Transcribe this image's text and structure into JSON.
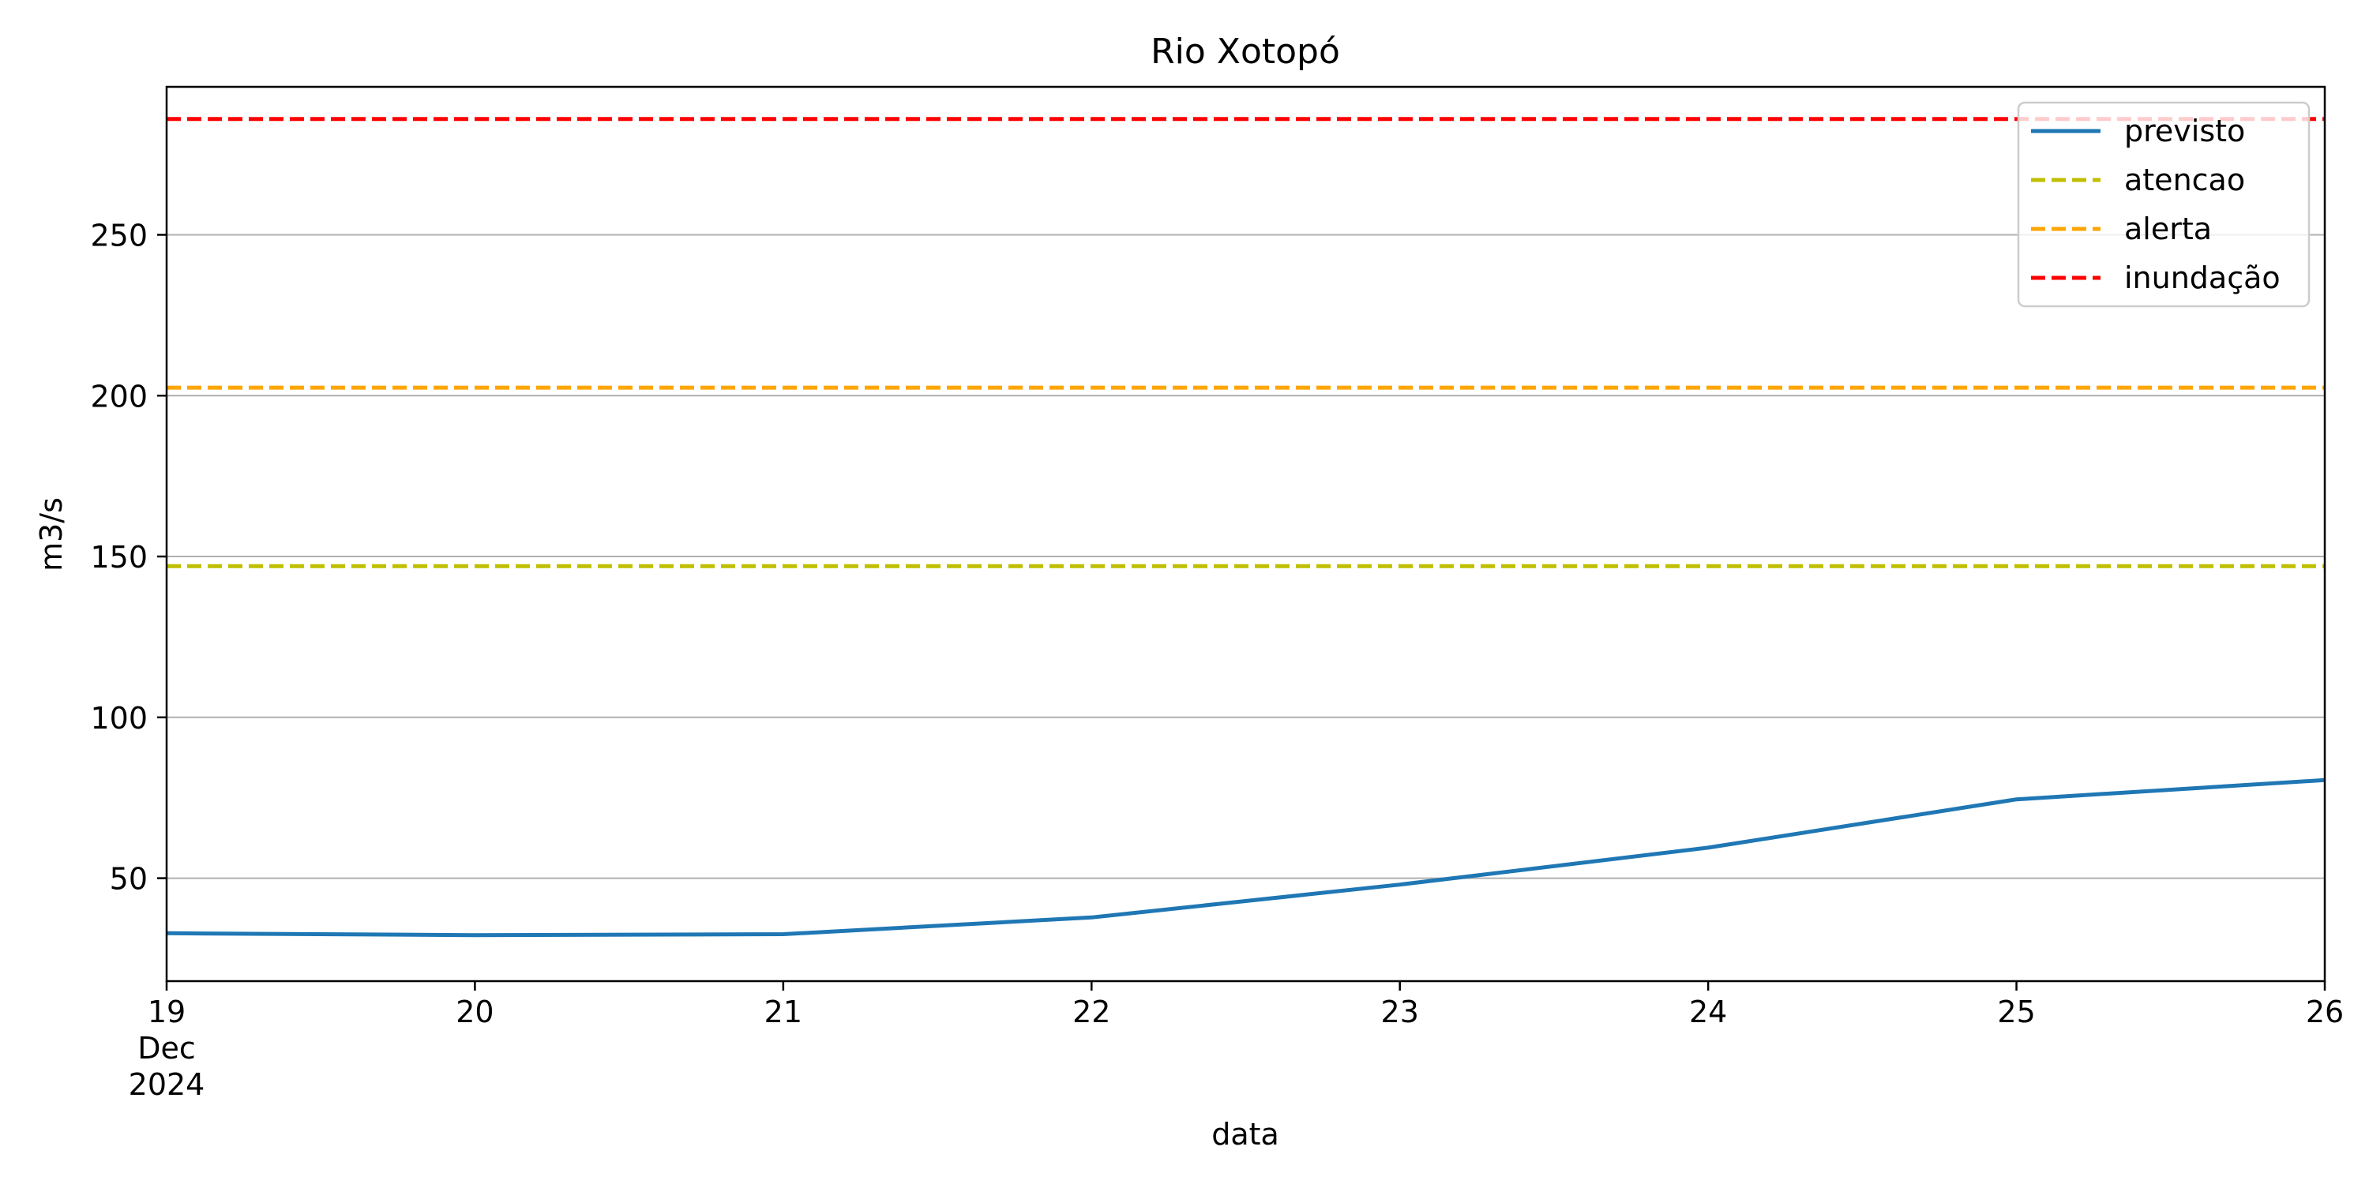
{
  "chart_data": {
    "type": "line",
    "title": "Rio Xotopó",
    "xlabel": "data",
    "ylabel": "m3/s",
    "x": [
      "2024-12-19",
      "2024-12-20",
      "2024-12-21",
      "2024-12-22",
      "2024-12-23",
      "2024-12-24",
      "2024-12-25",
      "2024-12-26"
    ],
    "x_tick_labels": [
      "19",
      "20",
      "21",
      "22",
      "23",
      "24",
      "25",
      "26"
    ],
    "x_tick_sublabels": [
      "Dec",
      "2024"
    ],
    "xlim": [
      "2024-12-19",
      "2024-12-26"
    ],
    "ylim": [
      18,
      296
    ],
    "y_ticks": [
      50,
      100,
      150,
      200,
      250
    ],
    "grid": "y",
    "legend_position": "top-right",
    "series": [
      {
        "name": "previsto",
        "values": [
          32.9,
          32.3,
          32.6,
          37.8,
          48.0,
          59.5,
          74.5,
          80.5
        ],
        "color": "#1f77b4",
        "style": "solid"
      }
    ],
    "thresholds": [
      {
        "name": "atencao",
        "value": 147,
        "color": "#bfbf00",
        "style": "dashed"
      },
      {
        "name": "alerta",
        "value": 202.5,
        "color": "#ffa500",
        "style": "dashed"
      },
      {
        "name": "inundação",
        "value": 286,
        "color": "#ff0000",
        "style": "dashed"
      }
    ]
  }
}
